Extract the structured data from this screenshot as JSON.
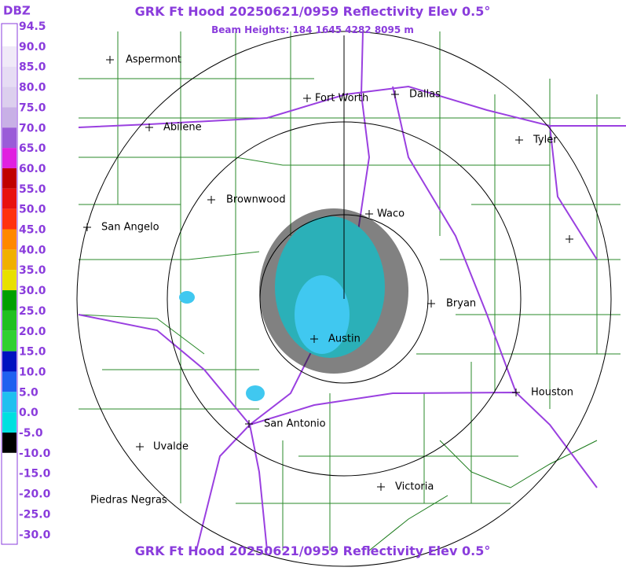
{
  "header": {
    "title": "GRK Ft Hood 20250621/0959 Reflectivity Elev 0.5°",
    "subtitle": "Beam Heights: 184 1645 4282 8095 m",
    "footer_title": "GRK Ft Hood 20250621/0959 Reflectivity Elev 0.5°"
  },
  "scale": {
    "unit": "DBZ",
    "labels": [
      "94.5",
      "90.0",
      "85.0",
      "80.0",
      "75.0",
      "70.0",
      "65.0",
      "60.0",
      "55.0",
      "50.0",
      "45.0",
      "40.0",
      "35.0",
      "30.0",
      "25.0",
      "20.0",
      "15.0",
      "10.0",
      "5.0",
      "0.0",
      "-5.0",
      "-10.0",
      "-15.0",
      "-20.0",
      "-25.0",
      "-30.0"
    ],
    "colors": [
      "#ffffff",
      "#f0eaf8",
      "#e6dcf4",
      "#dccfee",
      "#c8b0e6",
      "#9a5cd8",
      "#e020e0",
      "#c00000",
      "#e81010",
      "#ff3010",
      "#ff8800",
      "#f0b000",
      "#e8e000",
      "#00a000",
      "#20c020",
      "#30d030",
      "#0010c0",
      "#2060f0",
      "#20c0f0",
      "#00e0e0",
      "#000000",
      "#ffffff",
      "#ffffff",
      "#ffffff",
      "#ffffff",
      "#ffffff"
    ]
  },
  "cities": [
    {
      "label": "Aspermont"
    },
    {
      "label": "Fort Worth"
    },
    {
      "label": "Dallas"
    },
    {
      "label": "Abilene"
    },
    {
      "label": "Tyler"
    },
    {
      "label": "Brownwood"
    },
    {
      "label": "San Angelo"
    },
    {
      "label": "Waco"
    },
    {
      "label": "Bryan"
    },
    {
      "label": "Austin"
    },
    {
      "label": "Houston"
    },
    {
      "label": "San Antonio"
    },
    {
      "label": "Uvalde"
    },
    {
      "label": "Victoria"
    },
    {
      "label": "Piedras Negras"
    }
  ]
}
